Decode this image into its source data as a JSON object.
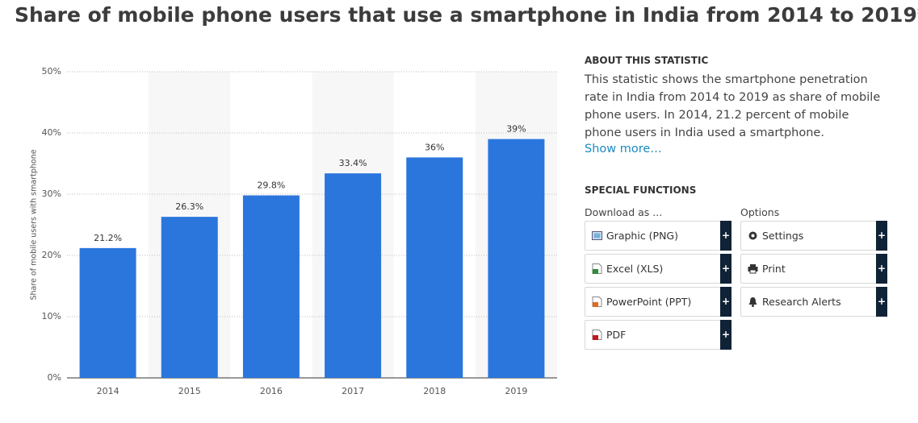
{
  "chart_data": {
    "type": "bar",
    "title": "Share of mobile phone users that use a smartphone in India from 2014 to 2019*",
    "y_label": "Share of mobile users with smartphone",
    "categories": [
      "2014",
      "2015",
      "2016",
      "2017",
      "2018",
      "2019"
    ],
    "values": [
      21.2,
      26.3,
      29.8,
      33.4,
      36,
      39
    ],
    "value_labels": [
      "21.2%",
      "26.3%",
      "29.8%",
      "33.4%",
      "36%",
      "39%"
    ],
    "color": "#2a76dc",
    "ylim": [
      0,
      50
    ],
    "yticks": [
      {
        "value": 0,
        "label": "0%"
      },
      {
        "value": 10,
        "label": "10%"
      },
      {
        "value": 20,
        "label": "20%"
      },
      {
        "value": 30,
        "label": "30%"
      },
      {
        "value": 40,
        "label": "40%"
      },
      {
        "value": 50,
        "label": "50%"
      }
    ],
    "grid": true
  },
  "page": {
    "about_heading": "ABOUT THIS STATISTIC",
    "about_text": "This statistic shows the smartphone penetration rate in India from 2014 to 2019 as share of mobile phone users. In 2014, 21.2 percent of mobile phone users in India used a smartphone.",
    "show_more": "Show more…",
    "functions_heading": "SPECIAL FUNCTIONS",
    "download_label": "Download as ...",
    "options_label": "Options",
    "download_buttons": [
      "Graphic (PNG)",
      "Excel (XLS)",
      "PowerPoint (PPT)",
      "PDF"
    ],
    "option_buttons": [
      "Settings",
      "Print",
      "Research Alerts"
    ],
    "plus": "+"
  }
}
